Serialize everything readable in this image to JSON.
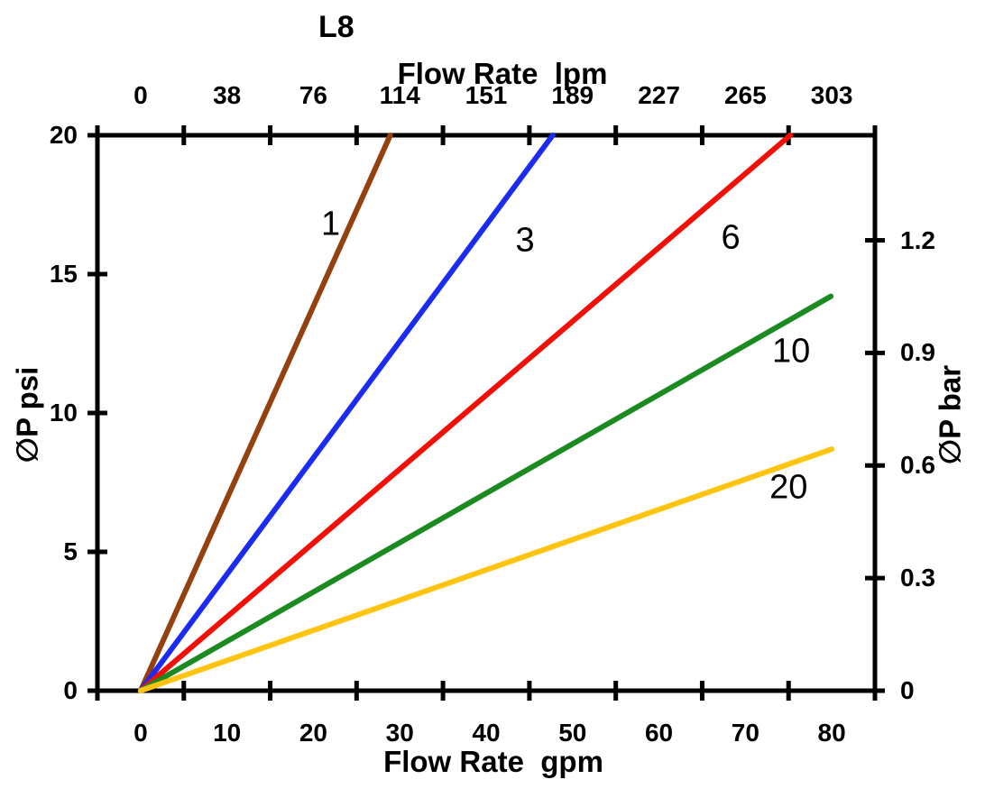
{
  "title": "L8",
  "chart_data": {
    "type": "line",
    "title": "L8",
    "grid": false,
    "background": "#ffffff",
    "axis_color": "#000000",
    "x_axis_bottom": {
      "label": "Flow Rate  gpm",
      "unit": "gpm",
      "ticks": [
        0,
        10,
        20,
        30,
        40,
        50,
        60,
        70,
        80
      ],
      "range": [
        0,
        80
      ]
    },
    "x_axis_top": {
      "label": "Flow Rate  lpm",
      "unit": "lpm",
      "ticks": [
        0,
        38,
        76,
        114,
        151,
        189,
        227,
        265,
        303
      ]
    },
    "y_axis_left": {
      "label": "∅P psi",
      "unit": "psi",
      "ticks": [
        0,
        5,
        10,
        15,
        20
      ],
      "range": [
        0,
        20
      ]
    },
    "y_axis_right": {
      "label": "∅P bar",
      "unit": "bar",
      "ticks": [
        0,
        0.3,
        0.6,
        0.9,
        1.2
      ]
    },
    "legend": "curve labels drawn inline next to each line",
    "series": [
      {
        "name": "1",
        "color": "#94400F",
        "points_gpm_psi": [
          [
            0,
            0
          ],
          [
            28.9,
            20
          ]
        ],
        "label_at_gpm_psi": [
          22.0,
          16.8
        ]
      },
      {
        "name": "3",
        "color": "#1C2BF0",
        "points_gpm_psi": [
          [
            0,
            0
          ],
          [
            47.7,
            20
          ]
        ],
        "label_at_gpm_psi": [
          44.5,
          16.2
        ]
      },
      {
        "name": "6",
        "color": "#F01008",
        "points_gpm_psi": [
          [
            0,
            0
          ],
          [
            75.2,
            20
          ]
        ],
        "label_at_gpm_psi": [
          68.3,
          16.3
        ]
      },
      {
        "name": "10",
        "color": "#1B8A20",
        "points_gpm_psi": [
          [
            0,
            0
          ],
          [
            79.9,
            14.2
          ]
        ],
        "label_at_gpm_psi": [
          75.3,
          12.2
        ]
      },
      {
        "name": "20",
        "color": "#FFC40F",
        "points_gpm_psi": [
          [
            0,
            0
          ],
          [
            80.0,
            8.7
          ]
        ],
        "label_at_gpm_psi": [
          75.0,
          7.3
        ]
      }
    ]
  }
}
